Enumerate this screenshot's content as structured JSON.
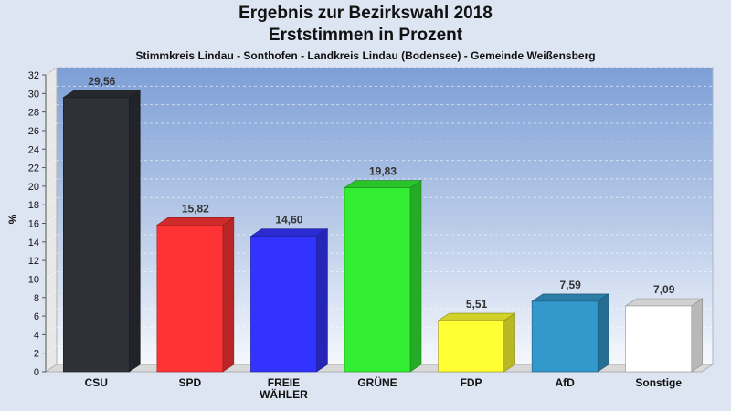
{
  "header": {
    "title": "Ergebnis zur Bezirkswahl 2018",
    "subtitle": "Erststimmen in Prozent",
    "region": "Stimmkreis Lindau - Sonthofen - Landkreis Lindau (Bodensee) - Gemeinde Weißensberg"
  },
  "chart_data": {
    "type": "bar",
    "title": "Ergebnis zur Bezirkswahl 2018",
    "subtitle": "Erststimmen in Prozent",
    "xlabel": "",
    "ylabel": "%",
    "ylim": [
      0,
      32
    ],
    "yticks": [
      0,
      2,
      4,
      6,
      8,
      10,
      12,
      14,
      16,
      18,
      20,
      22,
      24,
      26,
      28,
      30,
      32
    ],
    "grid": true,
    "categories": [
      "CSU",
      "SPD",
      "FREIE WÄHLER",
      "GRÜNE",
      "FDP",
      "AfD",
      "Sonstige"
    ],
    "category_lines": [
      [
        "CSU"
      ],
      [
        "SPD"
      ],
      [
        "FREIE",
        "WÄHLER"
      ],
      [
        "GRÜNE"
      ],
      [
        "FDP"
      ],
      [
        "AfD"
      ],
      [
        "Sonstige"
      ]
    ],
    "values": [
      29.56,
      15.82,
      14.6,
      19.83,
      5.51,
      7.59,
      7.09
    ],
    "value_labels": [
      "29,56",
      "15,82",
      "14,60",
      "19,83",
      "5,51",
      "7,59",
      "7,09"
    ],
    "colors": [
      "#2e3138",
      "#ff3333",
      "#3333ff",
      "#33ee33",
      "#ffff33",
      "#3399cc",
      "#ffffff"
    ]
  }
}
